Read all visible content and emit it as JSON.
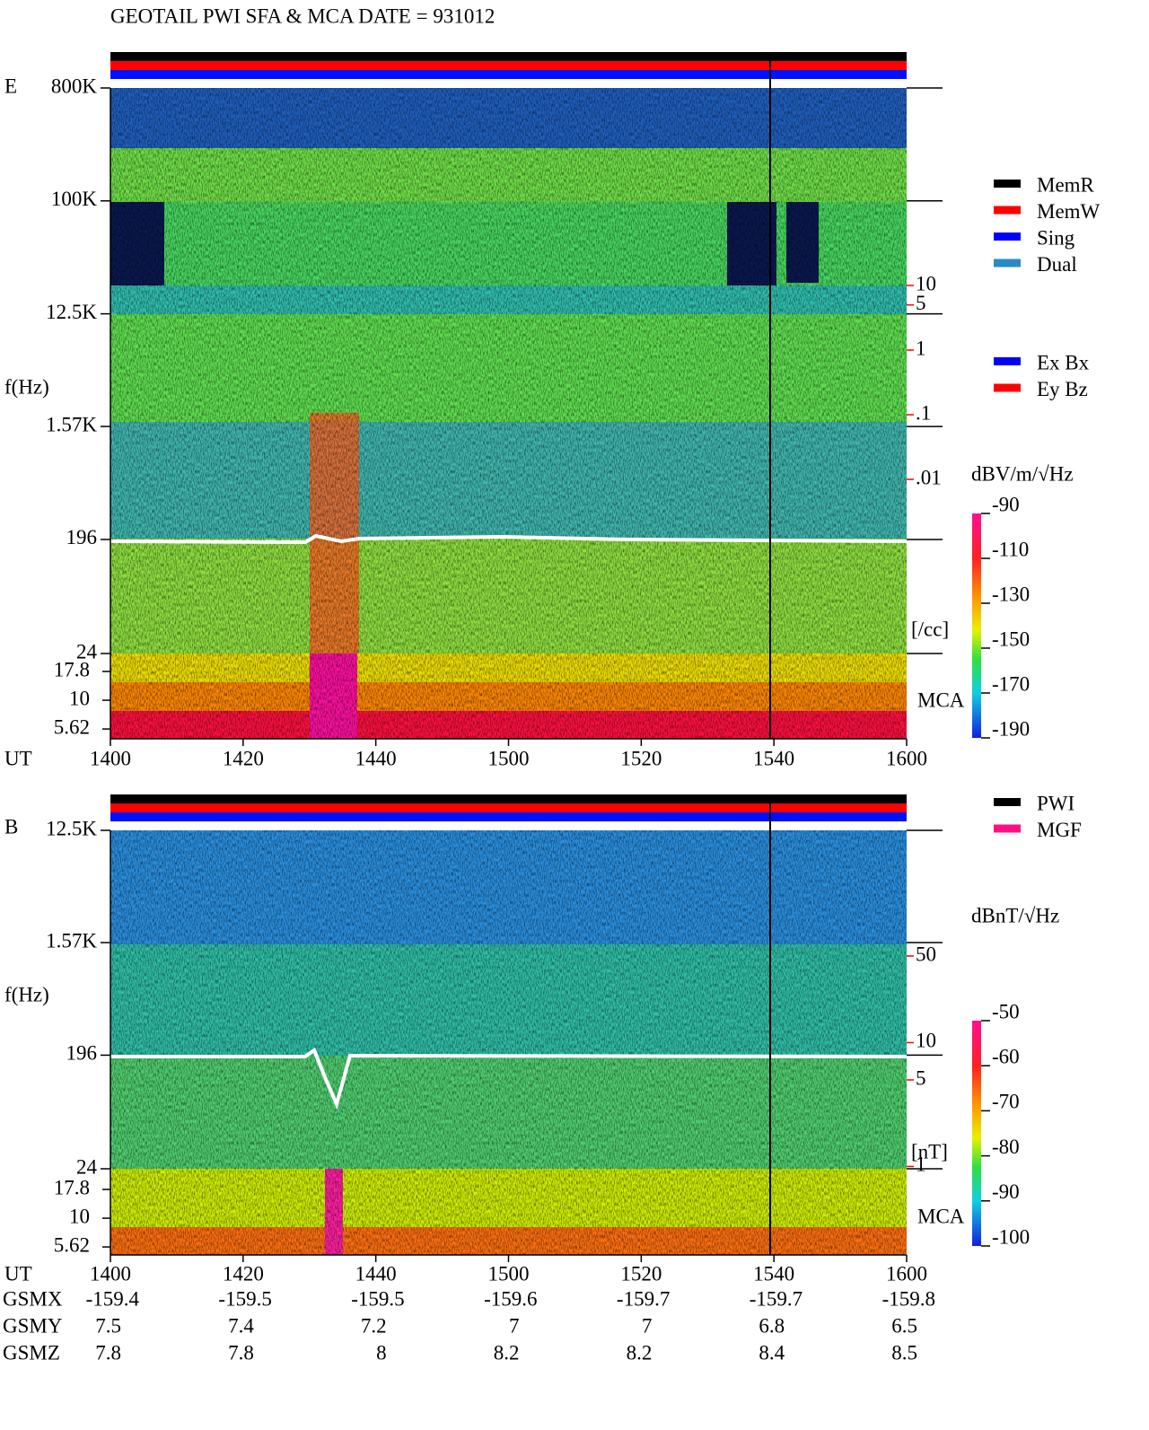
{
  "title": "GEOTAIL  PWI SFA & MCA   DATE = 931012",
  "chart_data": [
    {
      "type": "spectrogram",
      "panel_label": "E",
      "y_label": "f(Hz)",
      "x_label": "UT",
      "categories": [
        "1400",
        "1420",
        "1440",
        "1500",
        "1520",
        "1540",
        "1600"
      ],
      "log_scale": true,
      "ylim": [
        24,
        800000
      ],
      "yticks": [
        {
          "value": 800000,
          "label": "800K"
        },
        {
          "value": 100000,
          "label": "100K"
        },
        {
          "value": 12500,
          "label": "12.5K"
        },
        {
          "value": 1570,
          "label": "1.57K"
        },
        196,
        24
      ],
      "mca": {
        "label": "MCA",
        "yticks": [
          17.8,
          10,
          5.62
        ]
      },
      "right_axis": {
        "label": "[/cc]",
        "color": "#ff0000",
        "yticks": [
          10,
          5,
          1,
          {
            "value": 0.1,
            "label": ".1"
          },
          {
            "value": 0.01,
            "label": ".01"
          }
        ]
      },
      "colorbar": {
        "label": "dBV/m/√Hz",
        "lim": [
          -190,
          -90
        ],
        "ticks": [
          -90,
          -110,
          -130,
          -150,
          -170,
          -190
        ]
      },
      "legend": [
        {
          "name": "MemR",
          "color": "#000000"
        },
        {
          "name": "MemW",
          "color": "#ff0000"
        },
        {
          "name": "Sing",
          "color": "#0000ff"
        },
        {
          "name": "Dual",
          "color": "#2a8ac8"
        }
      ],
      "legend2": [
        {
          "name": "Ex Bx",
          "color": "#0000ff"
        },
        {
          "name": "Ey Bz",
          "color": "#ff0000"
        }
      ]
    },
    {
      "type": "spectrogram",
      "panel_label": "B",
      "y_label": "f(Hz)",
      "x_label": "UT",
      "categories": [
        "1400",
        "1420",
        "1440",
        "1500",
        "1520",
        "1540",
        "1600"
      ],
      "log_scale": true,
      "ylim": [
        24,
        12500
      ],
      "yticks": [
        {
          "value": 12500,
          "label": "12.5K"
        },
        {
          "value": 1570,
          "label": "1.57K"
        },
        196,
        24
      ],
      "mca": {
        "label": "MCA",
        "yticks": [
          17.8,
          10,
          5.62
        ]
      },
      "right_axis": {
        "label": "[nT]",
        "color": "#ff0000",
        "yticks": [
          50,
          10,
          5,
          1
        ]
      },
      "colorbar": {
        "label": "dBnT/√Hz",
        "lim": [
          -100,
          -50
        ],
        "ticks": [
          -50,
          -60,
          -70,
          -80,
          -90,
          -100
        ]
      },
      "legend": [
        {
          "name": "PWI",
          "color": "#000000"
        },
        {
          "name": "MGF",
          "color": "#ff1080"
        }
      ]
    }
  ],
  "orbit": {
    "rows": [
      {
        "label": "GSMX",
        "values": [
          -159.4,
          -159.5,
          -159.5,
          -159.6,
          -159.7,
          -159.7,
          -159.8
        ]
      },
      {
        "label": "GSMY",
        "values": [
          7.5,
          7.4,
          7.2,
          7.0,
          7.0,
          6.8,
          6.5
        ]
      },
      {
        "label": "GSMZ",
        "values": [
          7.8,
          7.8,
          8.0,
          8.2,
          8.2,
          8.4,
          8.5
        ]
      }
    ]
  }
}
